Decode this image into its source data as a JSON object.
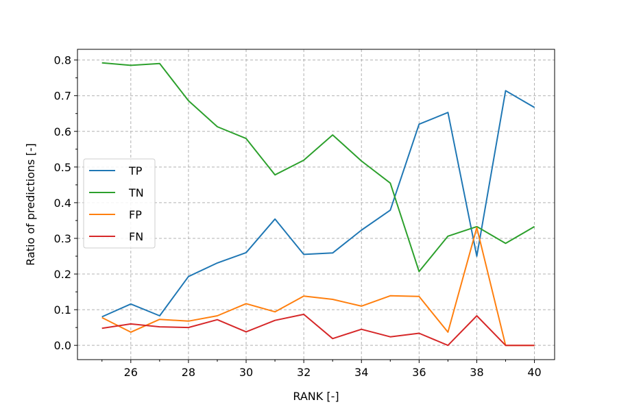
{
  "chart_data": {
    "type": "line",
    "xlabel": "RANK [-]",
    "ylabel": "Ratio of predictions [-]",
    "xlim": [
      24.15,
      40.7
    ],
    "ylim": [
      -0.04,
      0.83
    ],
    "xticks": [
      26,
      28,
      30,
      32,
      34,
      36,
      38,
      40
    ],
    "yticks": [
      0.0,
      0.1,
      0.2,
      0.3,
      0.4,
      0.5,
      0.6,
      0.7,
      0.8
    ],
    "grid": true,
    "legend_position": "center-left",
    "x": [
      25,
      26,
      27,
      28,
      29,
      30,
      31,
      32,
      33,
      34,
      35,
      36,
      37,
      38,
      39,
      40
    ],
    "series": [
      {
        "name": "TP",
        "color": "#1f77b4",
        "values": [
          0.08,
          0.116,
          0.083,
          0.193,
          0.231,
          0.26,
          0.354,
          0.255,
          0.259,
          0.323,
          0.379,
          0.62,
          0.653,
          0.25,
          0.714,
          0.667
        ]
      },
      {
        "name": "TN",
        "color": "#2ca02c",
        "values": [
          0.792,
          0.785,
          0.79,
          0.686,
          0.613,
          0.58,
          0.478,
          0.519,
          0.59,
          0.517,
          0.455,
          0.207,
          0.306,
          0.333,
          0.286,
          0.333
        ]
      },
      {
        "name": "FP",
        "color": "#ff7f0e",
        "values": [
          0.078,
          0.037,
          0.073,
          0.068,
          0.083,
          0.117,
          0.094,
          0.138,
          0.129,
          0.11,
          0.139,
          0.137,
          0.037,
          0.33,
          0.0,
          0.0
        ]
      },
      {
        "name": "FN",
        "color": "#d62728",
        "values": [
          0.048,
          0.06,
          0.052,
          0.05,
          0.072,
          0.038,
          0.07,
          0.087,
          0.019,
          0.045,
          0.024,
          0.034,
          0.0,
          0.083,
          0.0,
          0.0
        ]
      }
    ]
  }
}
